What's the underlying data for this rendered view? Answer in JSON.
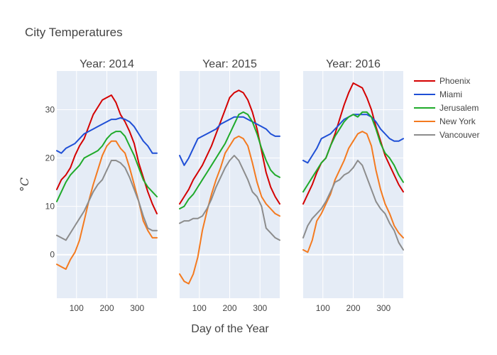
{
  "chart_data": {
    "type": "line",
    "title": "City Temperatures",
    "xlabel": "Day of the Year",
    "ylabel": "°C",
    "xlim": [
      35,
      365
    ],
    "ylim": [
      -9,
      38
    ],
    "xticks": [
      100,
      200,
      300
    ],
    "yticks": [
      0,
      10,
      20,
      30
    ],
    "legend_position": "right",
    "colors": {
      "Phoenix": "#d40000",
      "Miami": "#1f4fd6",
      "Jerusalem": "#1faa2a",
      "New York": "#f47a1f",
      "Vancouver": "#8c8c8c"
    },
    "panels": [
      {
        "title": "Year: 2014",
        "series": [
          {
            "name": "Phoenix",
            "x": [
              35,
              50,
              65,
              80,
              95,
              110,
              125,
              140,
              155,
              170,
              185,
              200,
              215,
              230,
              245,
              260,
              275,
              290,
              305,
              320,
              335,
              350,
              365
            ],
            "values": [
              13.5,
              15.5,
              16.5,
              18.0,
              20.5,
              22.5,
              24.0,
              26.5,
              29.0,
              30.5,
              32.0,
              32.5,
              33.0,
              31.5,
              29.0,
              27.5,
              25.5,
              23.0,
              19.0,
              16.0,
              13.0,
              10.5,
              8.5
            ]
          },
          {
            "name": "Miami",
            "x": [
              35,
              50,
              65,
              80,
              95,
              110,
              125,
              140,
              155,
              170,
              185,
              200,
              215,
              230,
              245,
              260,
              275,
              290,
              305,
              320,
              335,
              350,
              365
            ],
            "values": [
              21.5,
              21.0,
              22.0,
              22.5,
              23.0,
              24.0,
              25.0,
              25.5,
              26.0,
              26.5,
              27.0,
              27.5,
              28.0,
              28.0,
              28.3,
              28.0,
              27.5,
              26.5,
              25.0,
              23.5,
              22.5,
              21.0,
              21.0
            ]
          },
          {
            "name": "Jerusalem",
            "x": [
              35,
              50,
              65,
              80,
              95,
              110,
              125,
              140,
              155,
              170,
              185,
              200,
              215,
              230,
              245,
              260,
              275,
              290,
              305,
              320,
              335,
              350,
              365
            ],
            "values": [
              11.0,
              13.0,
              15.0,
              16.5,
              17.5,
              18.5,
              20.0,
              20.5,
              21.0,
              21.5,
              22.5,
              24.0,
              25.0,
              25.5,
              25.5,
              24.5,
              22.5,
              20.5,
              18.0,
              15.5,
              14.0,
              13.0,
              12.0
            ]
          },
          {
            "name": "New York",
            "x": [
              35,
              50,
              65,
              80,
              95,
              110,
              125,
              140,
              155,
              170,
              185,
              200,
              215,
              230,
              245,
              260,
              275,
              290,
              305,
              320,
              335,
              350,
              365
            ],
            "values": [
              -2.0,
              -2.5,
              -3.0,
              -1.0,
              0.5,
              3.0,
              7.0,
              11.0,
              14.5,
              17.5,
              20.5,
              22.5,
              23.5,
              23.5,
              22.0,
              21.0,
              18.0,
              14.5,
              11.0,
              7.0,
              5.0,
              3.5,
              3.5
            ]
          },
          {
            "name": "Vancouver",
            "x": [
              35,
              50,
              65,
              80,
              95,
              110,
              125,
              140,
              155,
              170,
              185,
              200,
              215,
              230,
              245,
              260,
              275,
              290,
              305,
              320,
              335,
              350,
              365
            ],
            "values": [
              4.0,
              3.5,
              3.0,
              4.5,
              6.0,
              7.5,
              9.0,
              11.0,
              13.0,
              14.5,
              15.5,
              17.5,
              19.5,
              19.5,
              19.0,
              18.0,
              16.0,
              13.5,
              11.0,
              8.0,
              5.5,
              5.0,
              5.0
            ]
          }
        ]
      },
      {
        "title": "Year: 2015",
        "series": [
          {
            "name": "Phoenix",
            "x": [
              35,
              50,
              65,
              80,
              95,
              110,
              125,
              140,
              155,
              170,
              185,
              200,
              215,
              230,
              245,
              260,
              275,
              290,
              305,
              320,
              335,
              350,
              365
            ],
            "values": [
              10.5,
              12.0,
              13.5,
              15.5,
              17.0,
              18.5,
              20.5,
              22.5,
              25.0,
              27.5,
              30.0,
              32.5,
              33.5,
              34.0,
              33.5,
              32.0,
              29.5,
              26.0,
              21.5,
              17.0,
              14.0,
              12.0,
              10.5
            ]
          },
          {
            "name": "Miami",
            "x": [
              35,
              50,
              65,
              80,
              95,
              110,
              125,
              140,
              155,
              170,
              185,
              200,
              215,
              230,
              245,
              260,
              275,
              290,
              305,
              320,
              335,
              350,
              365
            ],
            "values": [
              20.5,
              18.5,
              20.0,
              22.0,
              24.0,
              24.5,
              25.0,
              25.5,
              26.0,
              27.0,
              27.5,
              28.0,
              28.5,
              28.5,
              28.5,
              28.0,
              27.5,
              27.0,
              26.5,
              26.0,
              25.0,
              24.5,
              24.5
            ]
          },
          {
            "name": "Jerusalem",
            "x": [
              35,
              50,
              65,
              80,
              95,
              110,
              125,
              140,
              155,
              170,
              185,
              200,
              215,
              230,
              245,
              260,
              275,
              290,
              305,
              320,
              335,
              350,
              365
            ],
            "values": [
              9.5,
              10.0,
              11.5,
              12.5,
              14.0,
              15.5,
              17.0,
              18.5,
              20.0,
              21.5,
              23.0,
              25.0,
              27.0,
              29.0,
              29.5,
              29.0,
              27.5,
              25.0,
              22.0,
              19.5,
              17.5,
              16.5,
              16.0
            ]
          },
          {
            "name": "New York",
            "x": [
              35,
              50,
              65,
              80,
              95,
              110,
              125,
              140,
              155,
              170,
              185,
              200,
              215,
              230,
              245,
              260,
              275,
              290,
              305,
              320,
              335,
              350,
              365
            ],
            "values": [
              -4.0,
              -5.5,
              -6.0,
              -4.0,
              -0.5,
              5.0,
              9.0,
              12.5,
              15.5,
              18.0,
              21.0,
              22.5,
              24.0,
              24.5,
              24.0,
              22.5,
              19.0,
              15.0,
              12.0,
              10.5,
              9.5,
              8.5,
              8.0
            ]
          },
          {
            "name": "Vancouver",
            "x": [
              35,
              50,
              65,
              80,
              95,
              110,
              125,
              140,
              155,
              170,
              185,
              200,
              215,
              230,
              245,
              260,
              275,
              290,
              305,
              320,
              335,
              350,
              365
            ],
            "values": [
              6.5,
              7.0,
              7.0,
              7.5,
              7.5,
              8.0,
              9.5,
              11.5,
              14.0,
              16.0,
              18.0,
              19.5,
              20.5,
              19.5,
              17.5,
              15.5,
              13.0,
              12.0,
              10.0,
              5.5,
              4.5,
              3.5,
              3.0
            ]
          }
        ]
      },
      {
        "title": "Year: 2016",
        "series": [
          {
            "name": "Phoenix",
            "x": [
              35,
              50,
              65,
              80,
              95,
              110,
              125,
              140,
              155,
              170,
              185,
              200,
              215,
              230,
              245,
              260,
              275,
              290,
              305,
              320,
              335,
              350,
              365
            ],
            "values": [
              10.5,
              12.5,
              14.5,
              17.0,
              19.0,
              20.0,
              22.5,
              25.0,
              28.0,
              31.0,
              33.5,
              35.5,
              35.0,
              34.5,
              32.5,
              30.0,
              26.5,
              23.5,
              20.5,
              18.5,
              16.5,
              14.5,
              13.0
            ]
          },
          {
            "name": "Miami",
            "x": [
              35,
              50,
              65,
              80,
              95,
              110,
              125,
              140,
              155,
              170,
              185,
              200,
              215,
              230,
              245,
              260,
              275,
              290,
              305,
              320,
              335,
              350,
              365
            ],
            "values": [
              19.5,
              19.0,
              20.5,
              22.0,
              24.0,
              24.5,
              25.0,
              26.0,
              27.0,
              28.0,
              28.5,
              29.0,
              29.0,
              29.0,
              29.0,
              28.5,
              27.5,
              26.0,
              25.0,
              24.0,
              23.5,
              23.5,
              24.0
            ]
          },
          {
            "name": "Jerusalem",
            "x": [
              35,
              50,
              65,
              80,
              95,
              110,
              125,
              140,
              155,
              170,
              185,
              200,
              215,
              230,
              245,
              260,
              275,
              290,
              305,
              320,
              335,
              350,
              365
            ],
            "values": [
              13.0,
              14.5,
              16.0,
              17.5,
              19.0,
              20.0,
              22.5,
              24.5,
              26.0,
              27.5,
              28.5,
              29.0,
              28.5,
              29.5,
              29.5,
              28.5,
              26.0,
              23.0,
              21.0,
              20.0,
              18.5,
              16.5,
              15.0
            ]
          },
          {
            "name": "New York",
            "x": [
              35,
              50,
              65,
              80,
              95,
              110,
              125,
              140,
              155,
              170,
              185,
              200,
              215,
              230,
              245,
              260,
              275,
              290,
              305,
              320,
              335,
              350,
              365
            ],
            "values": [
              1.0,
              0.5,
              3.0,
              7.0,
              8.5,
              10.5,
              12.5,
              15.5,
              17.5,
              19.5,
              22.0,
              23.5,
              25.0,
              25.5,
              25.0,
              22.5,
              17.5,
              13.5,
              10.5,
              8.5,
              6.0,
              4.5,
              3.5
            ]
          },
          {
            "name": "Vancouver",
            "x": [
              35,
              50,
              65,
              80,
              95,
              110,
              125,
              140,
              155,
              170,
              185,
              200,
              215,
              230,
              245,
              260,
              275,
              290,
              305,
              320,
              335,
              350,
              365
            ],
            "values": [
              3.5,
              6.0,
              7.5,
              8.5,
              9.5,
              11.0,
              13.0,
              15.0,
              15.5,
              16.5,
              17.0,
              18.0,
              19.5,
              18.5,
              16.0,
              13.5,
              11.0,
              9.5,
              8.5,
              6.5,
              5.0,
              2.5,
              1.0
            ]
          }
        ]
      }
    ]
  }
}
